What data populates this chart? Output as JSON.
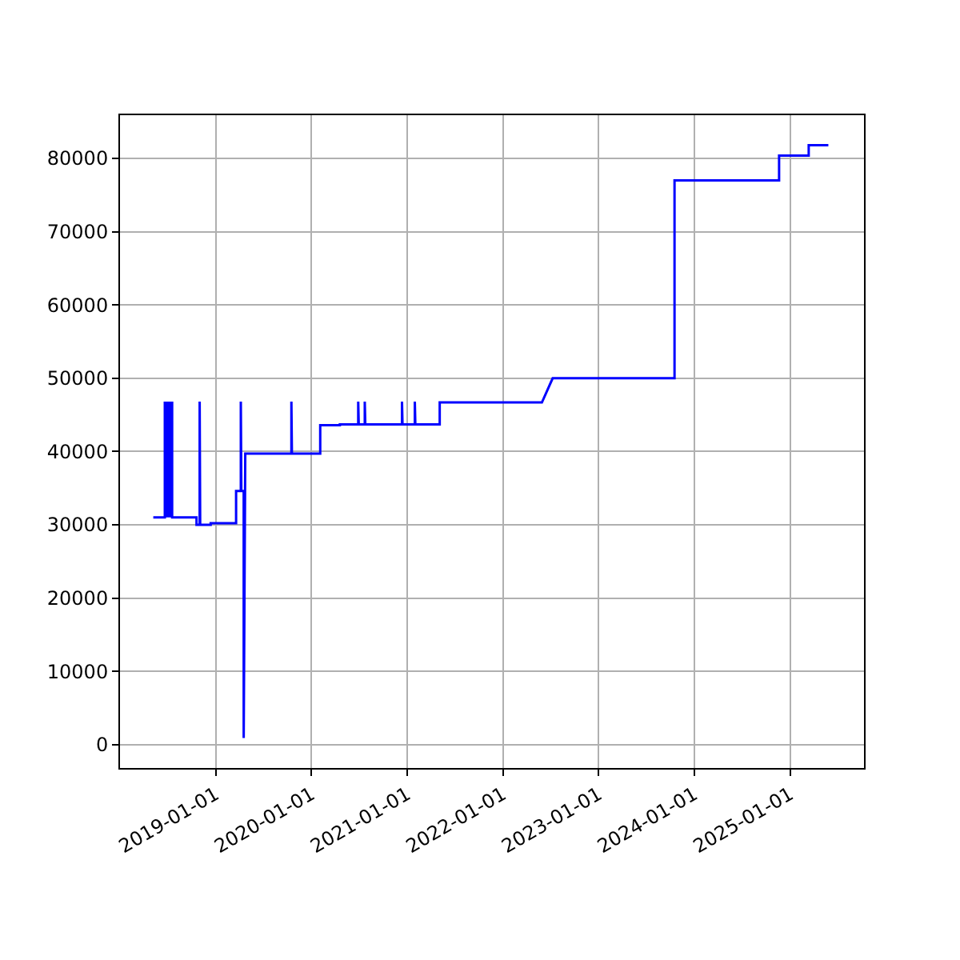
{
  "chart_data": {
    "type": "line",
    "x": [
      "2018-05-08",
      "2018-06-21",
      "2018-06-21",
      "2018-06-24",
      "2018-06-27",
      "2018-06-30",
      "2018-07-04",
      "2018-07-08",
      "2018-07-12",
      "2018-07-15",
      "2018-07-19",
      "2018-07-19",
      "2018-10-20",
      "2018-10-20",
      "2018-11-01",
      "2018-11-01",
      "2018-11-03",
      "2018-12-13",
      "2018-12-13",
      "2019-03-20",
      "2019-03-20",
      "2019-04-07",
      "2019-04-07",
      "2019-04-09",
      "2019-04-18",
      "2019-04-18",
      "2019-04-24",
      "2019-10-17",
      "2019-10-17",
      "2019-10-19",
      "2020-02-04",
      "2020-02-04",
      "2020-04-19",
      "2020-04-19",
      "2020-06-28",
      "2020-06-28",
      "2020-06-30",
      "2020-07-23",
      "2020-07-23",
      "2020-07-25",
      "2020-12-12",
      "2020-12-12",
      "2020-12-14",
      "2021-01-30",
      "2021-01-30",
      "2021-02-01",
      "2021-05-05",
      "2021-05-05",
      "2022-05-30",
      "2022-07-10",
      "2023-10-18",
      "2023-10-18",
      "2024-11-20",
      "2024-11-20",
      "2025-03-13",
      "2025-03-13",
      "2025-05-27"
    ],
    "series": [
      {
        "color": "#0000ff",
        "values": [
          31000,
          31000,
          46800,
          31000,
          46800,
          31000,
          46800,
          31000,
          46800,
          31000,
          46800,
          31000,
          31000,
          30000,
          30000,
          46800,
          30000,
          30000,
          30200,
          30200,
          34600,
          34600,
          46800,
          34600,
          34600,
          900,
          39700,
          39700,
          46800,
          39700,
          39700,
          43600,
          43600,
          43700,
          43700,
          46800,
          43700,
          43700,
          46800,
          43700,
          43700,
          46800,
          43700,
          43700,
          46800,
          43700,
          43700,
          46700,
          46700,
          50000,
          50000,
          77000,
          77000,
          80400,
          80400,
          81800,
          81800
        ]
      }
    ],
    "xlim": [
      "2018-01-01",
      "2025-10-10"
    ],
    "xticks": [
      "2019-01-01",
      "2020-01-01",
      "2021-01-01",
      "2022-01-01",
      "2023-01-01",
      "2024-01-01",
      "2025-01-01"
    ],
    "ylim": [
      -3200,
      85900
    ],
    "yticks": [
      0,
      10000,
      20000,
      30000,
      40000,
      50000,
      60000,
      70000,
      80000
    ],
    "grid": true,
    "marker": "none",
    "line_style": "solid"
  }
}
